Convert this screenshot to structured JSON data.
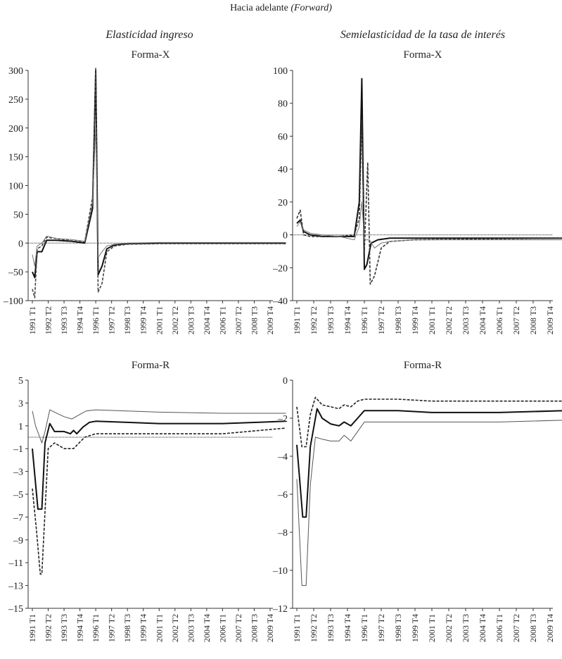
{
  "header": {
    "title": "Hacia adelante",
    "title_italic": "(Forward)"
  },
  "columns": [
    "Elasticidad ingreso",
    "Semielasticidad de la tasa de interés"
  ],
  "chart_data": [
    {
      "type": "line",
      "subtitle": "Forma-X",
      "ylim": [
        -100,
        300
      ],
      "yticks": [
        300,
        250,
        200,
        150,
        100,
        50,
        0,
        -50,
        -100
      ],
      "xticks": [
        "1991 T1",
        "1992 T2",
        "1993 T3",
        "1994 T4",
        "1996 T1",
        "1997 T2",
        "1998 T3",
        "1999 T4",
        "2001 T1",
        "2002 T2",
        "2003 T3",
        "2004 T4",
        "2006 T1",
        "2007 T2",
        "2008 T3",
        "2009 T4"
      ],
      "zero_line": true,
      "series": [
        {
          "style": "solid-thick",
          "color": "#111111",
          "points": [
            [
              0,
              -50
            ],
            [
              0.15,
              -60
            ],
            [
              0.3,
              -15
            ],
            [
              0.6,
              -15
            ],
            [
              0.9,
              5
            ],
            [
              1.5,
              5
            ],
            [
              2.5,
              3
            ],
            [
              3.3,
              0
            ],
            [
              3.8,
              60
            ],
            [
              4.0,
              300
            ],
            [
              4.15,
              -55
            ],
            [
              4.4,
              -40
            ],
            [
              4.7,
              -10
            ],
            [
              5.2,
              -3
            ],
            [
              6,
              -1
            ],
            [
              8,
              0
            ],
            [
              16,
              0
            ]
          ]
        },
        {
          "style": "dashed",
          "color": "#444444",
          "points": [
            [
              0,
              -80
            ],
            [
              0.15,
              -95
            ],
            [
              0.3,
              -10
            ],
            [
              0.6,
              -5
            ],
            [
              0.9,
              10
            ],
            [
              1.5,
              8
            ],
            [
              2.5,
              4
            ],
            [
              3.3,
              2
            ],
            [
              3.8,
              80
            ],
            [
              4.0,
              305
            ],
            [
              4.15,
              -85
            ],
            [
              4.4,
              -70
            ],
            [
              4.7,
              -15
            ],
            [
              5.2,
              -5
            ],
            [
              6,
              -2
            ],
            [
              8,
              -1
            ],
            [
              16,
              -1
            ]
          ]
        },
        {
          "style": "solid-thin",
          "color": "#777777",
          "points": [
            [
              0,
              -20
            ],
            [
              0.15,
              -40
            ],
            [
              0.3,
              -5
            ],
            [
              0.6,
              0
            ],
            [
              0.9,
              12
            ],
            [
              1.5,
              8
            ],
            [
              2.5,
              6
            ],
            [
              3.3,
              3
            ],
            [
              3.8,
              70
            ],
            [
              4.0,
              200
            ],
            [
              4.15,
              -25
            ],
            [
              4.4,
              -15
            ],
            [
              4.7,
              -5
            ],
            [
              5.2,
              -2
            ],
            [
              6,
              0
            ],
            [
              8,
              1
            ],
            [
              16,
              1
            ]
          ]
        }
      ]
    },
    {
      "type": "line",
      "subtitle": "Forma-X",
      "ylim": [
        -40,
        100
      ],
      "yticks": [
        100,
        80,
        60,
        40,
        20,
        0,
        -20,
        -40
      ],
      "xticks": [
        "1991 T1",
        "1992 T2",
        "1993 T3",
        "1994 T4",
        "1996 T1",
        "1997 T2",
        "1998 T3",
        "1999 T4",
        "2001 T1",
        "2002 T2",
        "2003 T3",
        "2004 T4",
        "2006 T1",
        "2007 T2",
        "2008 T3",
        "2009 T4"
      ],
      "zero_line": true,
      "series": [
        {
          "style": "solid-thick",
          "color": "#111111",
          "points": [
            [
              0,
              7
            ],
            [
              0.2,
              9
            ],
            [
              0.4,
              2
            ],
            [
              0.8,
              0
            ],
            [
              1.5,
              -1
            ],
            [
              2.5,
              -1
            ],
            [
              3.4,
              -1
            ],
            [
              3.7,
              20
            ],
            [
              3.85,
              95
            ],
            [
              4.0,
              -21
            ],
            [
              4.15,
              -18
            ],
            [
              4.4,
              -5
            ],
            [
              4.8,
              -3
            ],
            [
              5.5,
              -2
            ],
            [
              7,
              -2
            ],
            [
              10,
              -2
            ],
            [
              16,
              -2
            ]
          ]
        },
        {
          "style": "dashed",
          "color": "#333333",
          "points": [
            [
              0,
              10
            ],
            [
              0.2,
              15
            ],
            [
              0.4,
              0
            ],
            [
              0.8,
              -1
            ],
            [
              1.5,
              -1
            ],
            [
              2.5,
              -1
            ],
            [
              3.4,
              0
            ],
            [
              3.7,
              10
            ],
            [
              3.85,
              70
            ],
            [
              4.0,
              -10
            ],
            [
              4.2,
              44
            ],
            [
              4.35,
              -30
            ],
            [
              4.6,
              -25
            ],
            [
              5.0,
              -8
            ],
            [
              5.5,
              -4
            ],
            [
              7,
              -3
            ],
            [
              16,
              -2
            ]
          ]
        },
        {
          "style": "solid-thin",
          "color": "#777777",
          "points": [
            [
              0,
              5
            ],
            [
              0.2,
              8
            ],
            [
              0.4,
              3
            ],
            [
              0.8,
              1
            ],
            [
              1.5,
              0
            ],
            [
              2.5,
              -1
            ],
            [
              3.4,
              -3
            ],
            [
              3.7,
              5
            ],
            [
              3.85,
              20
            ],
            [
              4.0,
              -3
            ],
            [
              4.3,
              -3
            ],
            [
              4.6,
              -8
            ],
            [
              5.0,
              -5
            ],
            [
              5.5,
              -4
            ],
            [
              7,
              -3
            ],
            [
              16,
              -3
            ]
          ]
        }
      ]
    },
    {
      "type": "line",
      "subtitle": "Forma-R",
      "ylim": [
        -15,
        5
      ],
      "yticks": [
        5,
        3,
        1,
        -1,
        -3,
        -5,
        -7,
        -9,
        -11,
        -13,
        -15
      ],
      "xticks": [
        "1991 T1",
        "1992 T2",
        "1993 T3",
        "1994 T4",
        "1996 T1",
        "1997 T2",
        "1998 T3",
        "1999 T4",
        "2001 T1",
        "2002 T2",
        "2003 T3",
        "2004 T4",
        "2006 T1",
        "2007 T2",
        "2008 T3",
        "2009 T4"
      ],
      "zero_line": true,
      "series": [
        {
          "style": "solid-thick",
          "color": "#111111",
          "points": [
            [
              0,
              -1
            ],
            [
              0.35,
              -6.3
            ],
            [
              0.6,
              -6.3
            ],
            [
              0.8,
              -0.5
            ],
            [
              1.1,
              1.2
            ],
            [
              1.4,
              0.5
            ],
            [
              2.0,
              0.5
            ],
            [
              2.4,
              0.3
            ],
            [
              2.6,
              0.6
            ],
            [
              2.8,
              0.3
            ],
            [
              3.2,
              0.9
            ],
            [
              3.6,
              1.3
            ],
            [
              4.0,
              1.4
            ],
            [
              6,
              1.3
            ],
            [
              8,
              1.2
            ],
            [
              12,
              1.2
            ],
            [
              16,
              1.4
            ]
          ]
        },
        {
          "style": "dashed",
          "color": "#222222",
          "points": [
            [
              0,
              -4.5
            ],
            [
              0.25,
              -8
            ],
            [
              0.5,
              -12
            ],
            [
              0.6,
              -12
            ],
            [
              0.8,
              -6.5
            ],
            [
              1.0,
              -1
            ],
            [
              1.4,
              -0.5
            ],
            [
              2.0,
              -1
            ],
            [
              2.6,
              -1
            ],
            [
              3.3,
              0
            ],
            [
              4.0,
              0.3
            ],
            [
              6,
              0.3
            ],
            [
              8,
              0.3
            ],
            [
              12,
              0.3
            ],
            [
              16,
              0.8
            ]
          ]
        },
        {
          "style": "solid-thin",
          "color": "#555555",
          "points": [
            [
              0,
              2.3
            ],
            [
              0.2,
              1
            ],
            [
              0.6,
              -0.5
            ],
            [
              0.8,
              0.5
            ],
            [
              1.1,
              2.4
            ],
            [
              1.4,
              2.2
            ],
            [
              2.0,
              1.8
            ],
            [
              2.5,
              1.6
            ],
            [
              3.0,
              2.0
            ],
            [
              3.4,
              2.3
            ],
            [
              4.0,
              2.4
            ],
            [
              6,
              2.3
            ],
            [
              8,
              2.2
            ],
            [
              12,
              2.1
            ],
            [
              16,
              2.1
            ]
          ]
        }
      ]
    },
    {
      "type": "line",
      "subtitle": "Forma-R",
      "ylim": [
        -12,
        0
      ],
      "yticks": [
        0,
        -2,
        -4,
        -6,
        -8,
        -10,
        -12
      ],
      "xticks": [
        "1991 T1",
        "1992 T2",
        "1993 T3",
        "1994 T4",
        "1996 T1",
        "1997 T2",
        "1998 T3",
        "1999 T4",
        "2001 T1",
        "2002 T2",
        "2003 T3",
        "2004 T4",
        "2006 T1",
        "2007 T2",
        "2008 T3",
        "2009 T4"
      ],
      "zero_line": false,
      "series": [
        {
          "style": "solid-thick",
          "color": "#111111",
          "points": [
            [
              0,
              -3.4
            ],
            [
              0.35,
              -7.2
            ],
            [
              0.55,
              -7.2
            ],
            [
              0.8,
              -3.5
            ],
            [
              1.2,
              -1.5
            ],
            [
              1.5,
              -2
            ],
            [
              2.0,
              -2.3
            ],
            [
              2.5,
              -2.4
            ],
            [
              2.8,
              -2.2
            ],
            [
              3.2,
              -2.4
            ],
            [
              3.6,
              -2.0
            ],
            [
              4.0,
              -1.6
            ],
            [
              6,
              -1.6
            ],
            [
              8,
              -1.7
            ],
            [
              12,
              -1.7
            ],
            [
              16,
              -1.6
            ]
          ]
        },
        {
          "style": "dashed",
          "color": "#222222",
          "points": [
            [
              0,
              -1.4
            ],
            [
              0.3,
              -3.5
            ],
            [
              0.55,
              -3.5
            ],
            [
              0.8,
              -1.8
            ],
            [
              1.1,
              -0.9
            ],
            [
              1.5,
              -1.3
            ],
            [
              2.0,
              -1.4
            ],
            [
              2.5,
              -1.5
            ],
            [
              2.8,
              -1.3
            ],
            [
              3.2,
              -1.4
            ],
            [
              3.6,
              -1.1
            ],
            [
              4.0,
              -1.0
            ],
            [
              6,
              -1.0
            ],
            [
              8,
              -1.1
            ],
            [
              12,
              -1.1
            ],
            [
              16,
              -1.1
            ]
          ]
        },
        {
          "style": "solid-thin",
          "color": "#555555",
          "points": [
            [
              0,
              -5.2
            ],
            [
              0.3,
              -10.8
            ],
            [
              0.55,
              -10.8
            ],
            [
              0.8,
              -5.5
            ],
            [
              1.1,
              -3.0
            ],
            [
              1.5,
              -3.1
            ],
            [
              2.0,
              -3.2
            ],
            [
              2.5,
              -3.2
            ],
            [
              2.8,
              -2.9
            ],
            [
              3.2,
              -3.2
            ],
            [
              3.6,
              -2.7
            ],
            [
              4.0,
              -2.2
            ],
            [
              6,
              -2.2
            ],
            [
              8,
              -2.2
            ],
            [
              12,
              -2.2
            ],
            [
              16,
              -2.1
            ]
          ]
        }
      ]
    }
  ]
}
